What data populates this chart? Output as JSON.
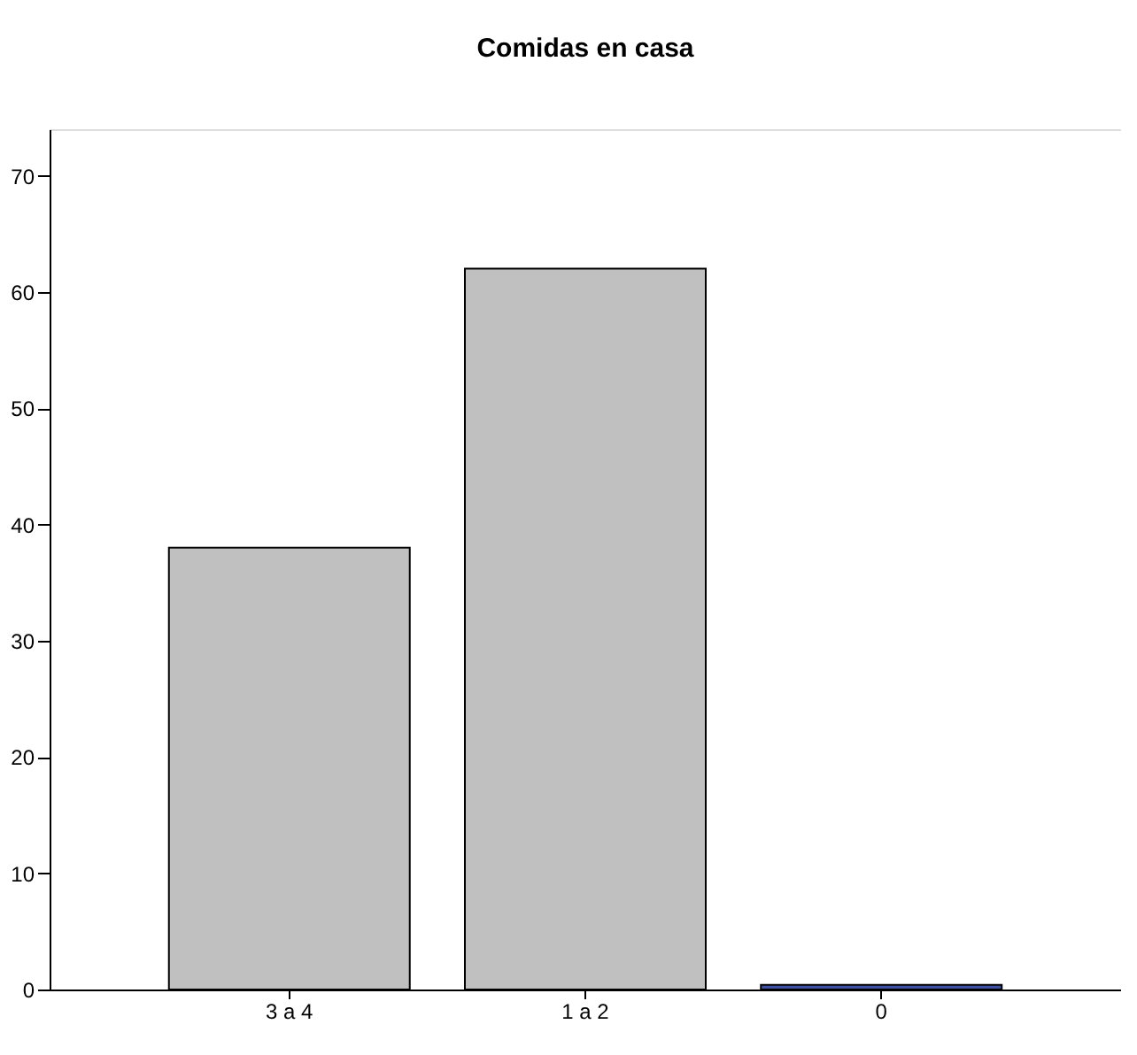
{
  "chart_data": {
    "type": "bar",
    "title": "Comidas en casa",
    "categories": [
      "3 a 4",
      "1 a 2",
      "0"
    ],
    "values": [
      38,
      62,
      0.4
    ],
    "colors": [
      "#c0c0c0",
      "#c0c0c0",
      "#3f51a3"
    ],
    "ylim": [
      0,
      74
    ],
    "yticks": [
      0,
      10,
      20,
      30,
      40,
      50,
      60,
      70
    ],
    "grid": false
  }
}
